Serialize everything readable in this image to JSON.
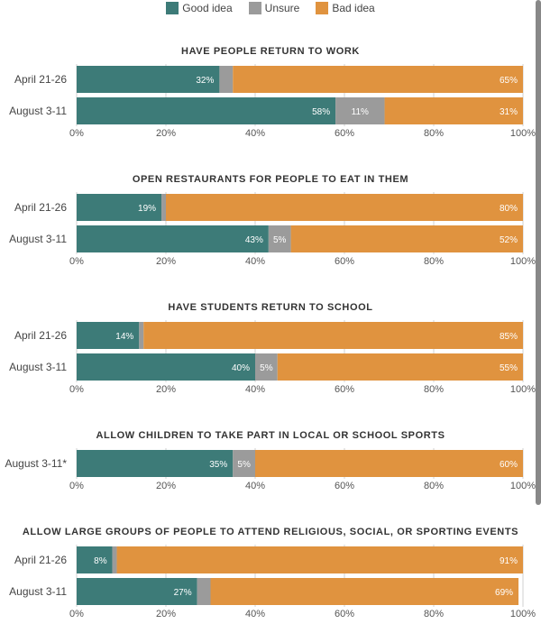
{
  "legend": {
    "good": "Good idea",
    "unsure": "Unsure",
    "bad": "Bad idea"
  },
  "colors": {
    "good": "#3d7b78",
    "unsure": "#9b9b9b",
    "bad": "#e0933f",
    "grid": "#d0d0d0"
  },
  "chart_data": {
    "type": "bar",
    "orientation": "horizontal-stacked",
    "series_names": [
      "Good idea",
      "Unsure",
      "Bad idea"
    ],
    "xlim": [
      0,
      100
    ],
    "ticks": [
      "0%",
      "20%",
      "40%",
      "60%",
      "80%",
      "100%"
    ],
    "grid": true,
    "legend_position": "top-center",
    "panels": [
      {
        "title": "HAVE PEOPLE RETURN TO WORK",
        "rows": [
          {
            "label": "April 21-26",
            "values": [
              32,
              3,
              65
            ],
            "labels": [
              "32%",
              "",
              "65%"
            ]
          },
          {
            "label": "August 3-11",
            "values": [
              58,
              11,
              31
            ],
            "labels": [
              "58%",
              "11%",
              "31%"
            ]
          }
        ]
      },
      {
        "title": "OPEN RESTAURANTS FOR PEOPLE TO EAT IN THEM",
        "rows": [
          {
            "label": "April 21-26",
            "values": [
              19,
              1,
              80
            ],
            "labels": [
              "19%",
              "",
              "80%"
            ]
          },
          {
            "label": "August 3-11",
            "values": [
              43,
              5,
              52
            ],
            "labels": [
              "43%",
              "5%",
              "52%"
            ]
          }
        ]
      },
      {
        "title": "HAVE STUDENTS RETURN TO SCHOOL",
        "rows": [
          {
            "label": "April 21-26",
            "values": [
              14,
              1,
              85
            ],
            "labels": [
              "14%",
              "",
              "85%"
            ]
          },
          {
            "label": "August 3-11",
            "values": [
              40,
              5,
              55
            ],
            "labels": [
              "40%",
              "5%",
              "55%"
            ]
          }
        ]
      },
      {
        "title": "ALLOW CHILDREN TO TAKE PART IN LOCAL OR SCHOOL SPORTS",
        "rows": [
          {
            "label": "August 3-11*",
            "values": [
              35,
              5,
              60
            ],
            "labels": [
              "35%",
              "5%",
              "60%"
            ]
          }
        ]
      },
      {
        "title": "ALLOW LARGE GROUPS OF PEOPLE TO ATTEND RELIGIOUS, SOCIAL, OR SPORTING EVENTS",
        "rows": [
          {
            "label": "April 21-26",
            "values": [
              8,
              1,
              91
            ],
            "labels": [
              "8%",
              "",
              "91%"
            ]
          },
          {
            "label": "August 3-11",
            "values": [
              27,
              3,
              69
            ],
            "labels": [
              "27%",
              "",
              "69%"
            ]
          }
        ]
      }
    ]
  }
}
